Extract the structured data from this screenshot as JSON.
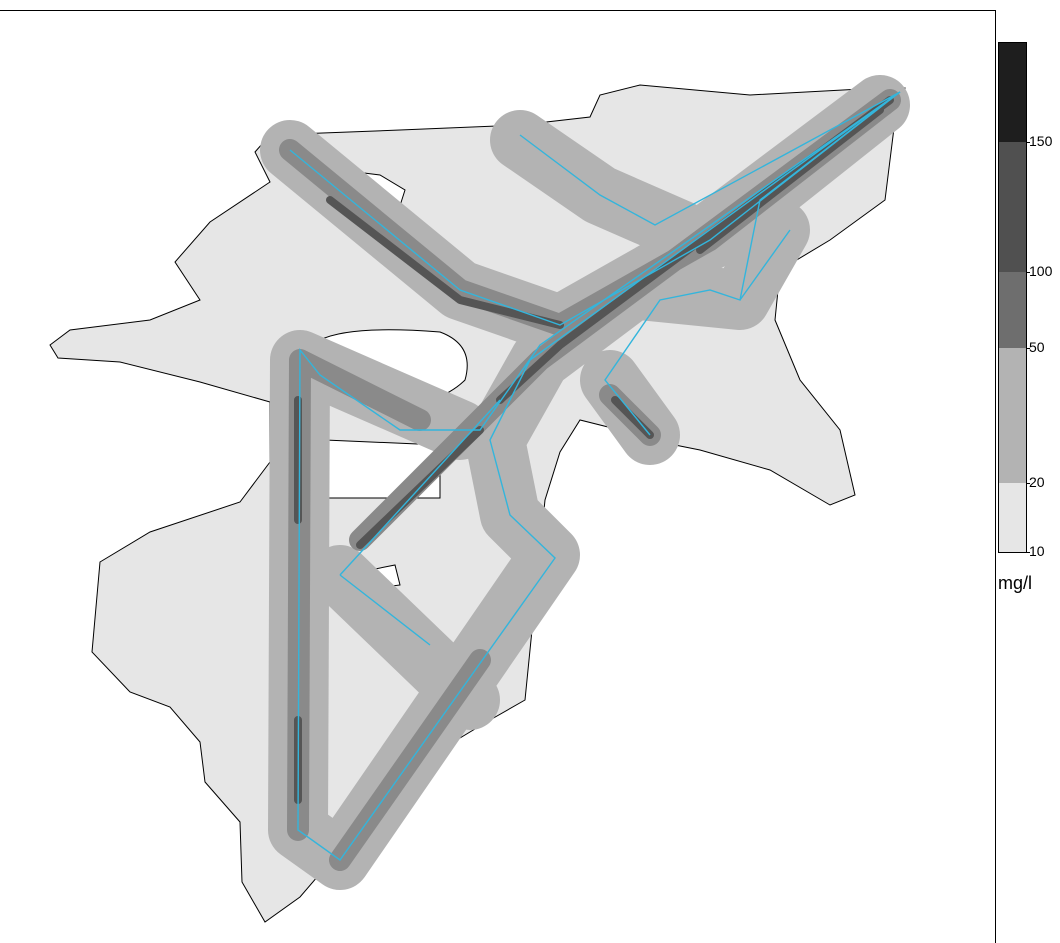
{
  "legend": {
    "unit": "mg/l",
    "ticks": [
      10,
      20,
      50,
      100,
      150
    ],
    "colors": [
      "#e6e6e6",
      "#b3b3b3",
      "#6e6e6e",
      "#505050",
      "#1e1e1e"
    ]
  }
}
